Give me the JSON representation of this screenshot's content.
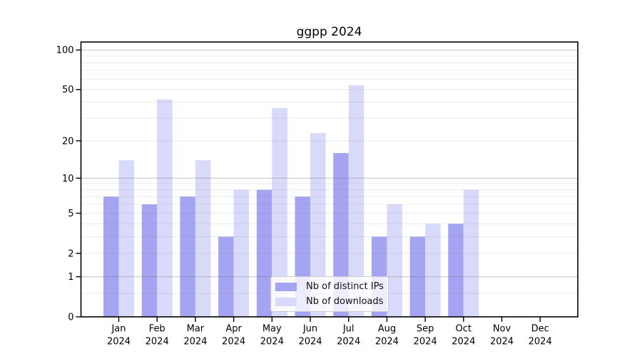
{
  "page": {
    "background": "#ffffff"
  },
  "chart_data": {
    "type": "bar",
    "title": "ggpp 2024",
    "categories": [
      "Jan",
      "Feb",
      "Mar",
      "Apr",
      "May",
      "Jun",
      "Jul",
      "Aug",
      "Sep",
      "Oct",
      "Nov",
      "Dec"
    ],
    "year_label": "2024",
    "series": [
      {
        "name": "Nb of distinct IPs",
        "color": "#a4a4f2",
        "values": [
          7,
          6,
          7,
          3,
          8,
          7,
          16,
          3,
          3,
          4,
          0,
          0
        ]
      },
      {
        "name": "Nb of downloads",
        "color": "#d9d9f9",
        "values": [
          14,
          42,
          14,
          8,
          36,
          23,
          54,
          6,
          4,
          8,
          0,
          0
        ]
      }
    ],
    "xlabel": "",
    "ylabel": "",
    "y_axis": {
      "scale": "log1p",
      "tick_labels": [
        0,
        1,
        2,
        5,
        10,
        20,
        50,
        100
      ],
      "major_gridlines": [
        1,
        10,
        100
      ],
      "minor_gridlines": [
        0.5,
        2,
        3,
        4,
        5,
        6,
        7,
        8,
        9,
        20,
        30,
        40,
        50,
        60,
        70,
        80,
        90
      ],
      "ylim": [
        0,
        115
      ]
    },
    "grid": "on",
    "legend_position": "inside-bottom-center",
    "colors": {
      "frame": "#000000",
      "tick_text": "#000000",
      "major_gridline": "rgba(110,110,110,0.42)",
      "minor_gridline": "rgba(130,130,145,0.16)"
    }
  }
}
